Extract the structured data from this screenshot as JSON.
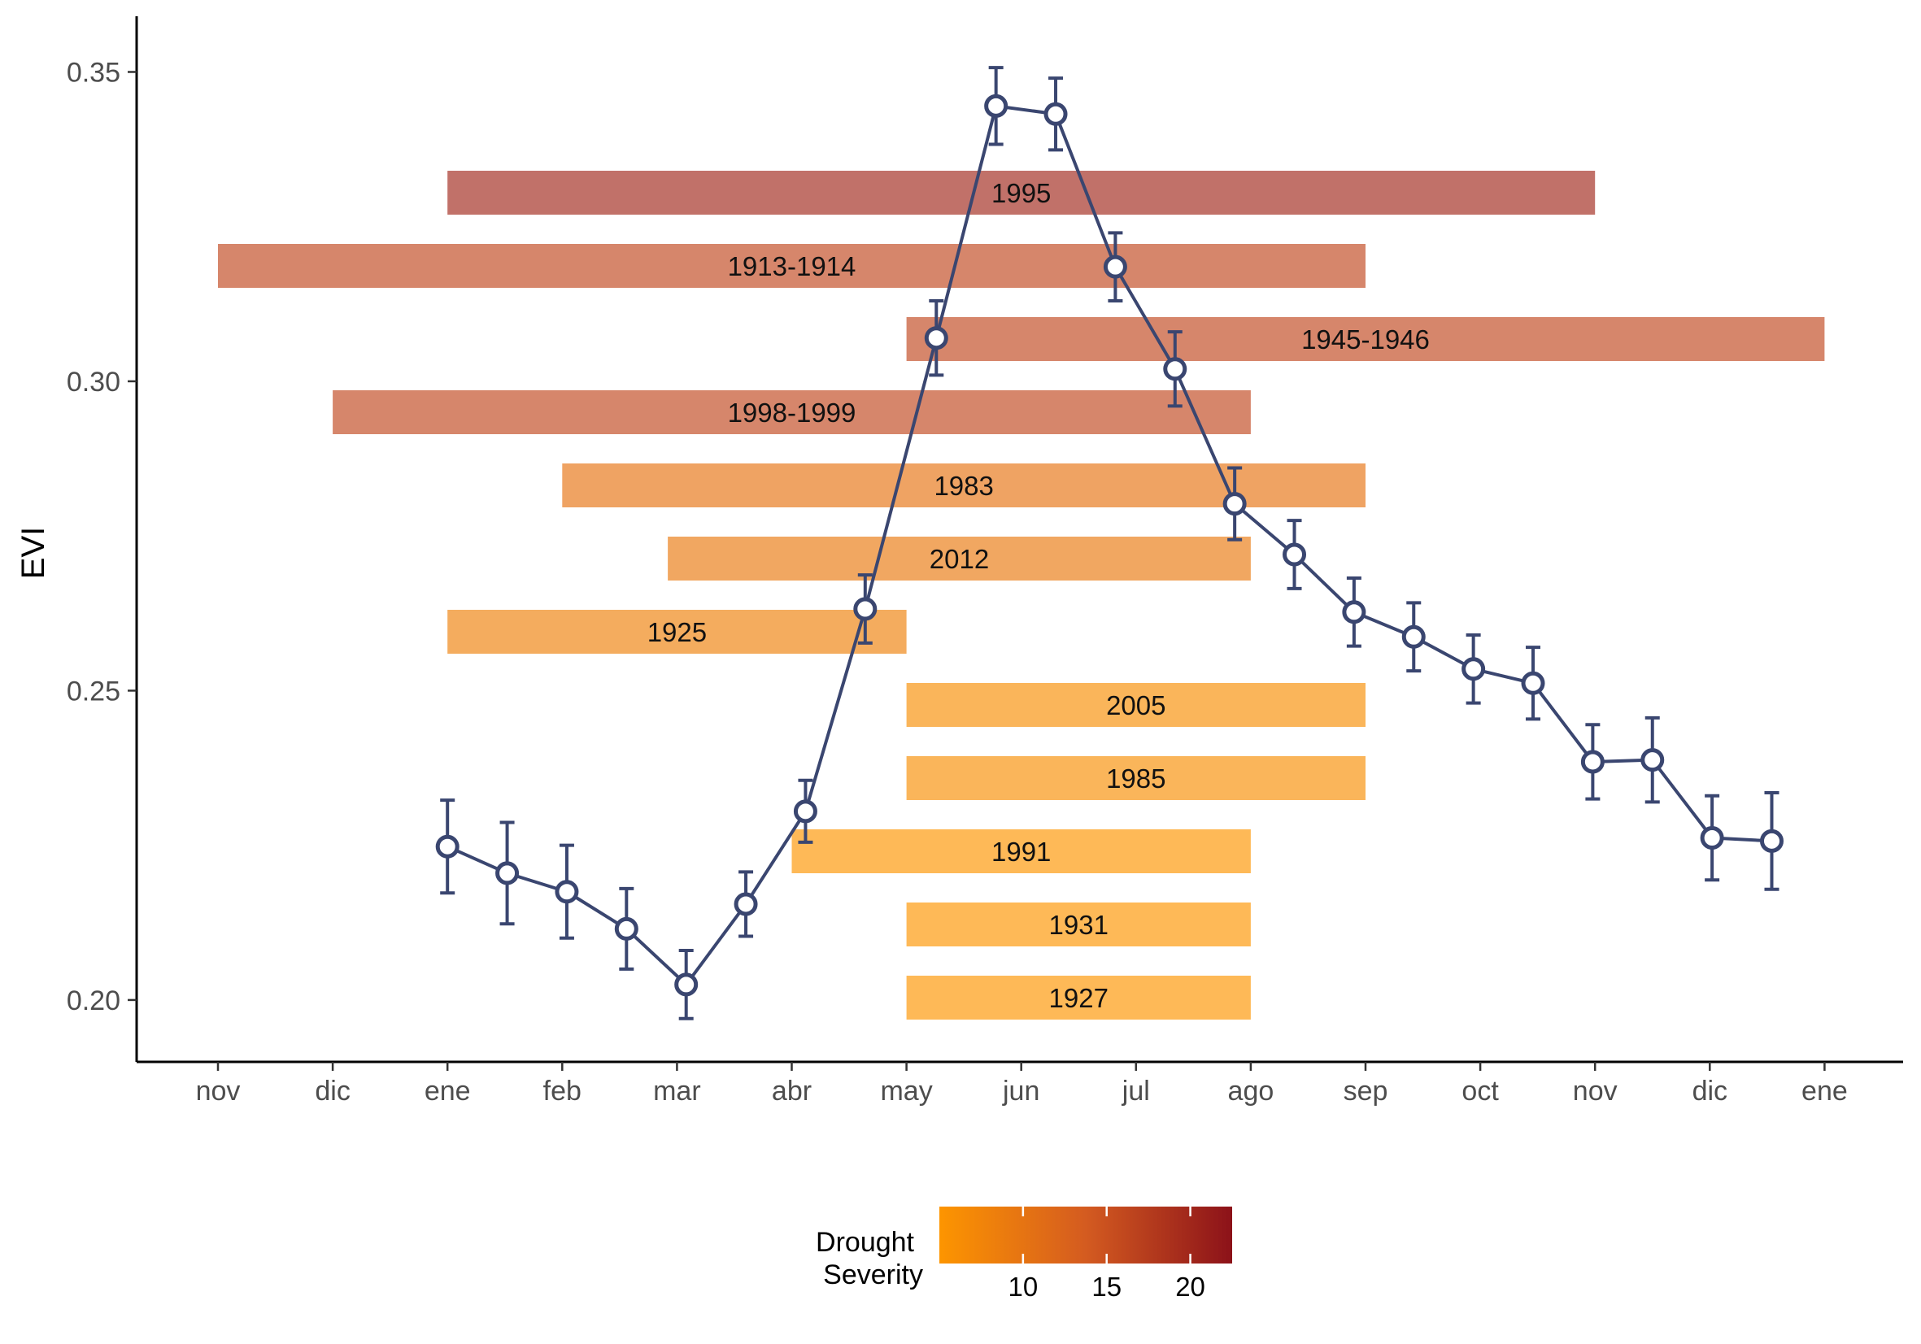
{
  "chart_data": {
    "type": "line",
    "title": "",
    "xlabel": "",
    "ylabel": "EVI",
    "ylim": [
      0.19,
      0.359
    ],
    "grid": false,
    "y_ticks": [
      "0.20",
      "0.25",
      "0.30",
      "0.35"
    ],
    "x_ticks": [
      "nov",
      "dic",
      "ene",
      "feb",
      "mar",
      "abr",
      "may",
      "jun",
      "jul",
      "ago",
      "sep",
      "oct",
      "nov",
      "dic",
      "ene"
    ],
    "x_range": [
      -0.4,
      14.7
    ],
    "series": [
      {
        "x": [
          2.0,
          2.52,
          3.04,
          3.56,
          4.08,
          4.6,
          5.12,
          5.64,
          6.26,
          6.78,
          7.3,
          7.82,
          8.34,
          8.86,
          9.38,
          9.9,
          10.42,
          10.94,
          11.46,
          11.98,
          12.5,
          13.02,
          13.54
        ],
        "y": [
          0.2248,
          0.2205,
          0.2175,
          0.2115,
          0.2025,
          0.2155,
          0.2305,
          0.2632,
          0.307,
          0.3445,
          0.3432,
          0.3185,
          0.302,
          0.2802,
          0.272,
          0.2627,
          0.2587,
          0.2535,
          0.2512,
          0.2385,
          0.2388,
          0.2262,
          0.2257
        ],
        "error": [
          0.0075,
          0.0082,
          0.0075,
          0.0065,
          0.0055,
          0.0052,
          0.005,
          0.0055,
          0.006,
          0.0062,
          0.0058,
          0.0055,
          0.006,
          0.0058,
          0.0055,
          0.0055,
          0.0055,
          0.0055,
          0.0058,
          0.006,
          0.0068,
          0.0068,
          0.0078
        ]
      }
    ],
    "droughts": [
      {
        "label": "1995",
        "start": 2,
        "end": 12,
        "severity": 20
      },
      {
        "label": "1913-1914",
        "start": 0,
        "end": 10,
        "severity": 16
      },
      {
        "label": "1945-1946",
        "start": 6,
        "end": 14,
        "severity": 16
      },
      {
        "label": "1998-1999",
        "start": 1,
        "end": 9,
        "severity": 16
      },
      {
        "label": "1983",
        "start": 3,
        "end": 10,
        "severity": 10
      },
      {
        "label": "2012",
        "start": 3.92,
        "end": 9,
        "severity": 9
      },
      {
        "label": "1925",
        "start": 2,
        "end": 6,
        "severity": 8
      },
      {
        "label": "2005",
        "start": 6,
        "end": 10,
        "severity": 6
      },
      {
        "label": "1985",
        "start": 6,
        "end": 10,
        "severity": 6
      },
      {
        "label": "1991",
        "start": 5,
        "end": 9,
        "severity": 5
      },
      {
        "label": "1931",
        "start": 6,
        "end": 9,
        "severity": 5
      },
      {
        "label": "1927",
        "start": 6,
        "end": 9,
        "severity": 3
      }
    ],
    "legend": {
      "title_lines": [
        "Drought",
        "Severity"
      ],
      "placement": "bottom",
      "range": [
        5,
        22.5
      ],
      "ticks": [
        10,
        15,
        20
      ],
      "colors": [
        "#fd9500",
        "#d45b20",
        "#8c1219"
      ]
    },
    "colors": {
      "line": "#3a4670",
      "point_fill": "#ffffff",
      "bar_opacity": 0.66
    }
  }
}
